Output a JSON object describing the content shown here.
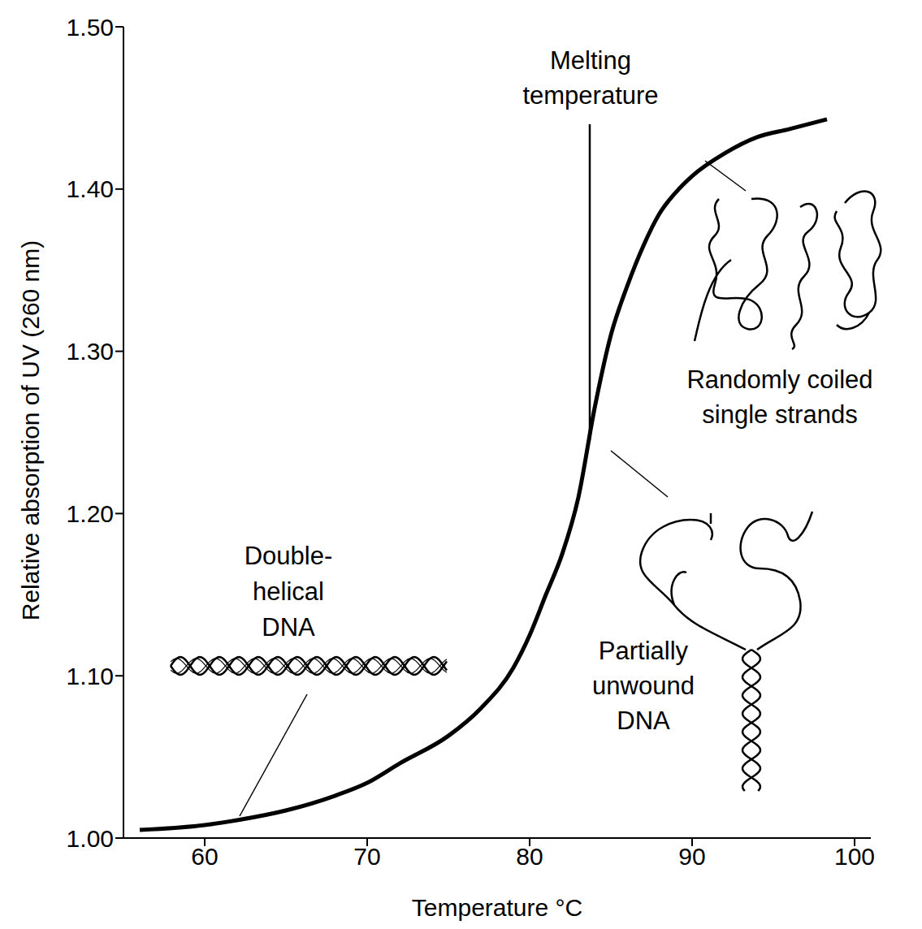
{
  "chart_data": {
    "type": "line",
    "x_label": "Temperature °C",
    "y_label": "Relative absorption of UV (260 nm)",
    "x": [
      56,
      60,
      62,
      65,
      68,
      70,
      72,
      75,
      77,
      79,
      80,
      81,
      82,
      83,
      84,
      85,
      86,
      87,
      88,
      89,
      90,
      92,
      94,
      96,
      98.3
    ],
    "values": [
      1.005,
      1.008,
      1.011,
      1.017,
      1.026,
      1.034,
      1.046,
      1.063,
      1.08,
      1.105,
      1.125,
      1.15,
      1.175,
      1.21,
      1.265,
      1.31,
      1.34,
      1.365,
      1.385,
      1.398,
      1.408,
      1.422,
      1.432,
      1.437,
      1.443
    ],
    "color": "#000000",
    "xlim": [
      55,
      101
    ],
    "xticks": [
      60,
      70,
      80,
      90,
      100
    ],
    "ylim": [
      1.0,
      1.5
    ],
    "yticks": [
      {
        "value": 1.0,
        "label": "1.00"
      },
      {
        "value": 1.1,
        "label": "1.10"
      },
      {
        "value": 1.2,
        "label": "1.20"
      },
      {
        "value": 1.3,
        "label": "1.30"
      },
      {
        "value": 1.4,
        "label": "1.40"
      },
      {
        "value": 1.5,
        "label": "1.50"
      }
    ],
    "grid": false,
    "annotations": [
      {
        "text": "Melting temperature",
        "x": 83.7,
        "y": [
          1.245,
          1.44
        ]
      },
      {
        "text": "Double-helical DNA"
      },
      {
        "text": "Partially unwound DNA"
      },
      {
        "text": "Randomly coiled single strands"
      }
    ]
  }
}
